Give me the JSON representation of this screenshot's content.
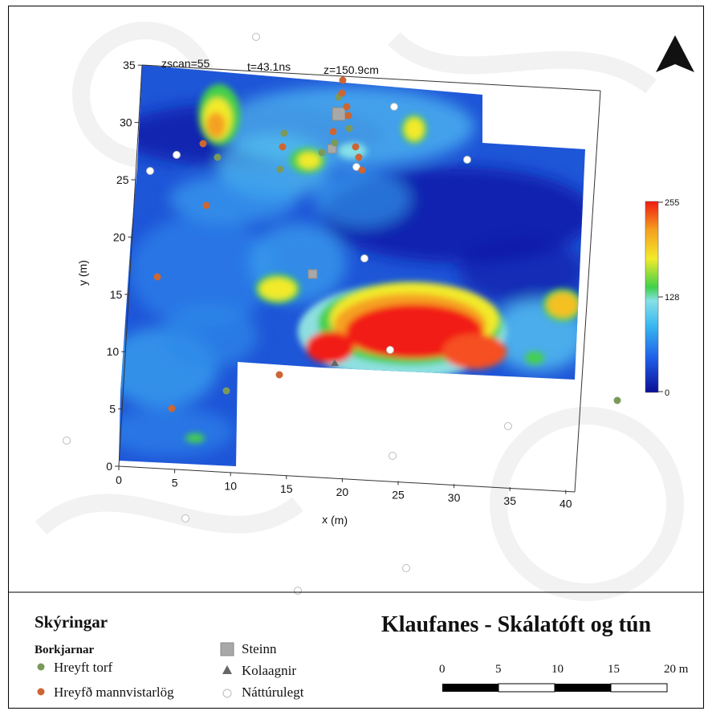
{
  "map": {
    "title": "Klaufanes - Skálatóft og tún",
    "scan_labels": {
      "zscan": "zscan=55",
      "time": "t=43.1ns",
      "depth": "z=150.9cm"
    },
    "x_axis": {
      "label": "x (m)",
      "ticks": [
        "0",
        "5",
        "10",
        "15",
        "20",
        "25",
        "30",
        "35",
        "40"
      ]
    },
    "y_axis": {
      "label": "y (m)",
      "ticks": [
        "0",
        "5",
        "10",
        "15",
        "20",
        "25",
        "30",
        "35"
      ]
    },
    "colorbar": {
      "max": "255",
      "mid": "128",
      "min": "0",
      "colors": [
        "#0b0f96",
        "#1f5fe8",
        "#38b8f0",
        "#86e0e6",
        "#3fd14a",
        "#f2ea2a",
        "#f5a020",
        "#f21a12"
      ]
    },
    "north_arrow": "north-arrow-icon"
  },
  "legend": {
    "heading": "Skýringar",
    "group_title": "Borkjarnar",
    "items": [
      {
        "label": "Hreyft torf",
        "color": "#7a9a5a",
        "symbol": "circle"
      },
      {
        "label": "Hreyfð mannvistarlög",
        "color": "#cc6633",
        "symbol": "circle"
      },
      {
        "label": "Steinn",
        "color": "#a8a8a8",
        "symbol": "square"
      },
      {
        "label": "Kolaagnir",
        "color": "#777777",
        "symbol": "triangle"
      },
      {
        "label": "Náttúrulegt",
        "color": "#ffffff",
        "symbol": "open-circle"
      }
    ]
  },
  "scale_bar": {
    "labels": [
      "0",
      "5",
      "10",
      "15",
      "20 m"
    ]
  }
}
